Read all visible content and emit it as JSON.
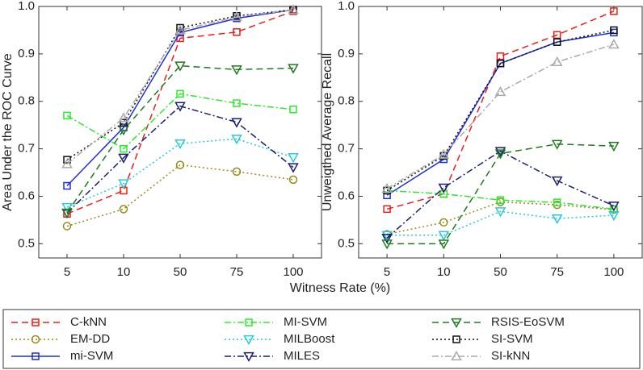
{
  "chart_data": [
    {
      "type": "line",
      "ylabel": "Area Under the ROC Curve",
      "xlabel": "Witness Rate (%)",
      "categories": [
        "5",
        "10",
        "50",
        "75",
        "100"
      ],
      "ylim": [
        0.47,
        1.0
      ],
      "yticks": [
        0.5,
        0.6,
        0.7,
        0.8,
        0.9,
        {
          "value": 1,
          "label": "1.0"
        }
      ],
      "legend": "bottom",
      "series": [
        {
          "name": "C-kNN",
          "color": "#e8201c",
          "dash": "dashed",
          "marker": "square",
          "values": [
            0.563,
            0.612,
            0.933,
            0.946,
            0.99
          ]
        },
        {
          "name": "EM-DD",
          "color": "#9a8a1c",
          "dash": "dotted",
          "marker": "circle",
          "values": [
            0.537,
            0.573,
            0.666,
            0.652,
            0.635
          ]
        },
        {
          "name": "mi-SVM",
          "color": "#1f2fd6",
          "dash": "solid",
          "marker": "square",
          "values": [
            0.622,
            0.745,
            0.945,
            0.975,
            0.993
          ]
        },
        {
          "name": "MI-SVM",
          "color": "#2ee82e",
          "dash": "dashdot",
          "marker": "square",
          "values": [
            0.77,
            0.7,
            0.816,
            0.796,
            0.783
          ]
        },
        {
          "name": "MILBoost",
          "color": "#28c8d8",
          "dash": "dotted",
          "marker": "triangle-down",
          "values": [
            0.577,
            0.627,
            0.711,
            0.721,
            0.682
          ]
        },
        {
          "name": "MILES",
          "color": "#1a1f6e",
          "dash": "dashdot",
          "marker": "triangle-down",
          "values": [
            0.565,
            0.681,
            0.79,
            0.756,
            0.661
          ]
        },
        {
          "name": "RSIS-EoSVM",
          "color": "#1f7a1f",
          "dash": "dashed",
          "marker": "triangle-down",
          "values": [
            0.565,
            0.74,
            0.875,
            0.867,
            0.87
          ]
        },
        {
          "name": "SI-SVM",
          "color": "#111111",
          "dash": "dotted",
          "marker": "square",
          "values": [
            0.677,
            0.755,
            0.955,
            0.98,
            0.993
          ]
        },
        {
          "name": "SI-kNN",
          "color": "#aaaaaa",
          "dash": "dashdot",
          "marker": "triangle-up",
          "values": [
            0.668,
            0.765,
            0.95,
            0.978,
            0.993
          ]
        }
      ]
    },
    {
      "type": "line",
      "ylabel": "Unweigthed Average Recall",
      "categories": [
        "5",
        "10",
        "50",
        "75",
        "100"
      ],
      "ylim": [
        0.47,
        1.0
      ],
      "yticks": [
        0.5,
        0.6,
        0.7,
        0.8,
        0.9,
        {
          "value": 1,
          "label": "1.0"
        }
      ],
      "series": [
        {
          "color": "#e8201c",
          "dash": "dashed",
          "marker": "square",
          "values": [
            0.573,
            0.605,
            0.895,
            0.94,
            0.99
          ]
        },
        {
          "color": "#9a8a1c",
          "dash": "dotted",
          "marker": "circle",
          "values": [
            0.52,
            0.545,
            0.588,
            0.582,
            0.572
          ]
        },
        {
          "color": "#1f2fd6",
          "dash": "solid",
          "marker": "square",
          "values": [
            0.602,
            0.678,
            0.88,
            0.925,
            0.945
          ]
        },
        {
          "color": "#2ee82e",
          "dash": "dashdot",
          "marker": "square",
          "values": [
            0.612,
            0.605,
            0.592,
            0.587,
            0.573
          ]
        },
        {
          "color": "#28c8d8",
          "dash": "dotted",
          "marker": "triangle-down",
          "values": [
            0.518,
            0.518,
            0.568,
            0.553,
            0.56
          ]
        },
        {
          "color": "#1a1f6e",
          "dash": "dashdot",
          "marker": "triangle-down",
          "values": [
            0.512,
            0.618,
            0.695,
            0.633,
            0.58
          ]
        },
        {
          "color": "#1f7a1f",
          "dash": "dashed",
          "marker": "triangle-down",
          "values": [
            0.5,
            0.5,
            0.69,
            0.71,
            0.706
          ]
        },
        {
          "color": "#111111",
          "dash": "dotted",
          "marker": "square",
          "values": [
            0.612,
            0.685,
            0.88,
            0.925,
            0.95
          ]
        },
        {
          "color": "#aaaaaa",
          "dash": "dashdot",
          "marker": "triangle-up",
          "values": [
            0.616,
            0.688,
            0.82,
            0.883,
            0.92
          ]
        }
      ]
    }
  ]
}
